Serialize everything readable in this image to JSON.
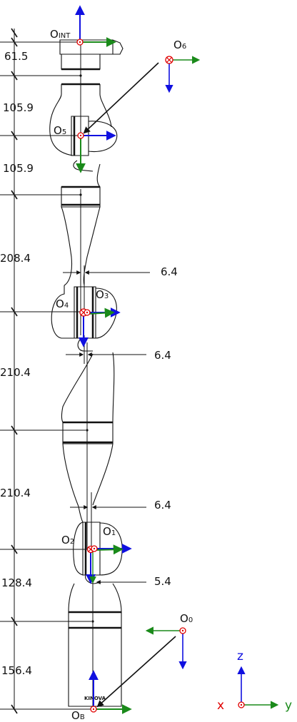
{
  "dimensions": [
    "61.5",
    "105.9",
    "105.9",
    "208.4",
    "210.4",
    "210.4",
    "128.4",
    "156.4"
  ],
  "offsets": [
    "6.4",
    "6.4",
    "6.4",
    "5.4"
  ],
  "frames": {
    "int": {
      "main": "O",
      "sub": "INT"
    },
    "f6": {
      "main": "O",
      "sub": "6"
    },
    "f5": {
      "main": "O",
      "sub": "5"
    },
    "f4": {
      "main": "O",
      "sub": "4"
    },
    "f3": {
      "main": "O",
      "sub": "3"
    },
    "f2": {
      "main": "O",
      "sub": "2"
    },
    "f1": {
      "main": "O",
      "sub": "1"
    },
    "f0": {
      "main": "O",
      "sub": "0"
    },
    "base": {
      "main": "O",
      "sub": "B"
    }
  },
  "legend": {
    "x": "x",
    "y": "y",
    "z": "z"
  },
  "logo": "KINOVA",
  "colors": {
    "x": "#e00000",
    "y": "#1a8a1a",
    "z": "#1010e0",
    "outline": "#111111"
  }
}
